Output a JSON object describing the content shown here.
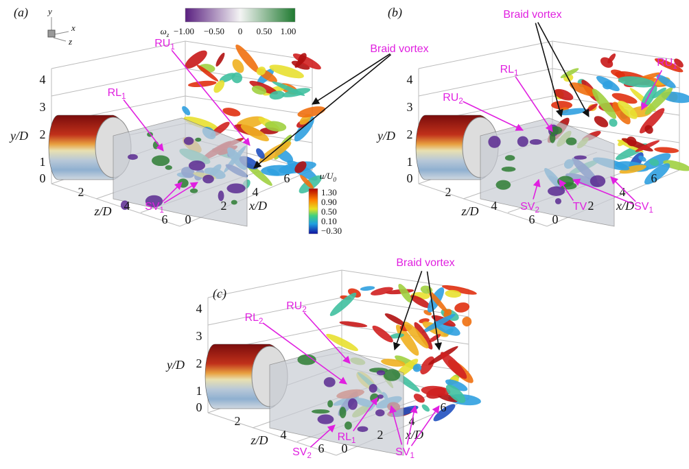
{
  "colorbar_w": {
    "label": {
      "text": "ω",
      "sub": "z"
    },
    "ticks": [
      "−1.00",
      "−0.50",
      "0",
      "0.50",
      "1.00"
    ]
  },
  "colorbar_u": {
    "label": {
      "text": "u/U",
      "sub": "0"
    },
    "ticks": [
      "1.30",
      "0.90",
      "0.50",
      "0.10",
      "−0.30"
    ]
  },
  "triad": {
    "y": "y",
    "x": "x",
    "z": "z"
  },
  "panels": [
    {
      "label": "(a)",
      "y_label": "y/D",
      "z_label": "z/D",
      "x_label": "x/D",
      "yticks": [
        "0",
        "1",
        "2",
        "3",
        "4"
      ],
      "zticks": [
        "2",
        "4",
        "6"
      ],
      "xticks": [
        "0",
        "2",
        "4",
        "6"
      ],
      "annotations": [
        {
          "text": "RL",
          "sub": "1"
        },
        {
          "text": "RU",
          "sub": "1"
        },
        {
          "text": "Braid vortex"
        },
        {
          "text": "SV",
          "sub": "1"
        }
      ]
    },
    {
      "label": "(b)",
      "y_label": "y/D",
      "z_label": "z/D",
      "x_label": "x/D",
      "yticks": [
        "0",
        "1",
        "2",
        "3",
        "4"
      ],
      "zticks": [
        "2",
        "4",
        "6"
      ],
      "xticks": [
        "0",
        "2",
        "4",
        "6"
      ],
      "annotations": [
        {
          "text": "Braid vortex"
        },
        {
          "text": "RL",
          "sub": "1"
        },
        {
          "text": "RU",
          "sub": "2"
        },
        {
          "text": "RU",
          "sub": "1"
        },
        {
          "text": "SV",
          "sub": "2"
        },
        {
          "text": "TV"
        },
        {
          "text": "SV",
          "sub": "1"
        }
      ]
    },
    {
      "label": "(c)",
      "y_label": "y/D",
      "z_label": "z/D",
      "x_label": "x/D",
      "yticks": [
        "0",
        "1",
        "2",
        "3",
        "4"
      ],
      "zticks": [
        "2",
        "4",
        "6"
      ],
      "xticks": [
        "0",
        "2",
        "4",
        "6"
      ],
      "annotations": [
        {
          "text": "Braid vortex"
        },
        {
          "text": "RL",
          "sub": "2"
        },
        {
          "text": "RU",
          "sub": "2"
        },
        {
          "text": "RL",
          "sub": "1"
        },
        {
          "text": "SV",
          "sub": "2"
        },
        {
          "text": "SV",
          "sub": "1"
        }
      ]
    }
  ]
}
